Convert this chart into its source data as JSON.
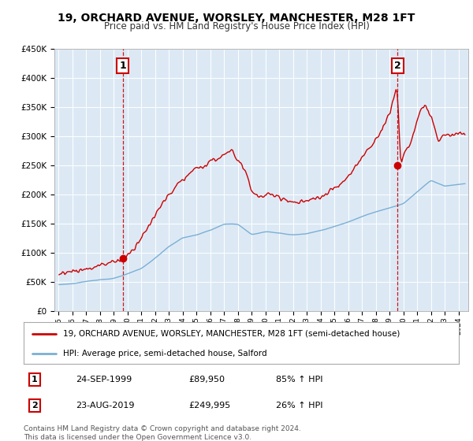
{
  "title": "19, ORCHARD AVENUE, WORSLEY, MANCHESTER, M28 1FT",
  "subtitle": "Price paid vs. HM Land Registry's House Price Index (HPI)",
  "ylim": [
    0,
    450000
  ],
  "yticks": [
    0,
    50000,
    100000,
    150000,
    200000,
    250000,
    300000,
    350000,
    400000,
    450000
  ],
  "ytick_labels": [
    "£0",
    "£50K",
    "£100K",
    "£150K",
    "£200K",
    "£250K",
    "£300K",
    "£350K",
    "£400K",
    "£450K"
  ],
  "background_color": "#ffffff",
  "plot_bg_color": "#dce9f5",
  "grid_color": "#ffffff",
  "line1_color": "#cc0000",
  "line2_color": "#7aafd4",
  "vline_color": "#cc0000",
  "marker_color": "#cc0000",
  "legend_line1": "19, ORCHARD AVENUE, WORSLEY, MANCHESTER, M28 1FT (semi-detached house)",
  "legend_line2": "HPI: Average price, semi-detached house, Salford",
  "annotation1_num": "1",
  "annotation1_date": "24-SEP-1999",
  "annotation1_price": "£89,950",
  "annotation1_hpi": "85% ↑ HPI",
  "annotation2_num": "2",
  "annotation2_date": "23-AUG-2019",
  "annotation2_price": "£249,995",
  "annotation2_hpi": "26% ↑ HPI",
  "footer": "Contains HM Land Registry data © Crown copyright and database right 2024.\nThis data is licensed under the Open Government Licence v3.0.",
  "title_fontsize": 10,
  "subtitle_fontsize": 8.5,
  "tick_fontsize": 7.5,
  "legend_fontsize": 7.5,
  "annotation_fontsize": 8,
  "footer_fontsize": 6.5
}
